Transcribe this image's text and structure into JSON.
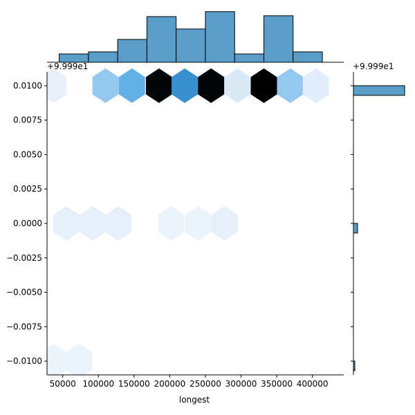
{
  "chart_data": {
    "type": "hexbin-jointplot",
    "xlabel": "longest",
    "ylabel": "",
    "x_offset_label": "",
    "y_offset_label": "+9.999e1",
    "y_offset_label_right": "+9.999e1",
    "xlim": [
      28000,
      444000
    ],
    "ylim": [
      -0.011,
      0.011
    ],
    "x_ticks": [
      50000,
      100000,
      150000,
      200000,
      250000,
      300000,
      350000,
      400000
    ],
    "x_tick_labels": [
      "50000",
      "100000",
      "150000",
      "200000",
      "250000",
      "300000",
      "350000",
      "400000"
    ],
    "y_ticks": [
      0.01,
      0.0075,
      0.005,
      0.0025,
      0.0,
      -0.0025,
      -0.005,
      -0.0075,
      -0.01
    ],
    "y_tick_labels": [
      "0.0100",
      "0.0075",
      "0.0050",
      "0.0025",
      "0.0000",
      "−0.0025",
      "−0.0050",
      "−0.0075",
      "−0.0100"
    ],
    "hexbins": [
      {
        "x": 37000,
        "y": 0.01,
        "count": 1
      },
      {
        "x": 110000,
        "y": 0.01,
        "count": 4
      },
      {
        "x": 147000,
        "y": 0.01,
        "count": 6
      },
      {
        "x": 185000,
        "y": 0.01,
        "count": 12
      },
      {
        "x": 221000,
        "y": 0.01,
        "count": 8
      },
      {
        "x": 258000,
        "y": 0.01,
        "count": 12
      },
      {
        "x": 295000,
        "y": 0.01,
        "count": 2
      },
      {
        "x": 332000,
        "y": 0.01,
        "count": 13
      },
      {
        "x": 369000,
        "y": 0.01,
        "count": 4
      },
      {
        "x": 405000,
        "y": 0.01,
        "count": 1.5
      },
      {
        "x": 55000,
        "y": 0.0,
        "count": 1
      },
      {
        "x": 92000,
        "y": 0.0,
        "count": 1
      },
      {
        "x": 128000,
        "y": 0.0,
        "count": 1
      },
      {
        "x": 202000,
        "y": 0.0,
        "count": 0.5
      },
      {
        "x": 240000,
        "y": 0.0,
        "count": 0.5
      },
      {
        "x": 277000,
        "y": 0.0,
        "count": 1
      },
      {
        "x": 37000,
        "y": -0.01,
        "count": 0.5
      },
      {
        "x": 73000,
        "y": -0.01,
        "count": 0.5
      }
    ],
    "hex_max_count": 13,
    "top_histogram": {
      "bin_edges": [
        45000,
        86000,
        127000,
        168000,
        209000,
        250000,
        291000,
        332000,
        373000,
        414000,
        455000
      ],
      "counts": [
        2,
        2.5,
        5.5,
        11,
        8.02,
        12.2,
        2.0,
        11.2,
        2.5,
        0
      ],
      "ylim": [
        0,
        13
      ]
    },
    "right_histogram": {
      "bins": [
        {
          "y_low": 0.0093,
          "y_high": 0.01,
          "count": 75
        },
        {
          "y_low": -0.0007,
          "y_high": 0.0,
          "count": 6
        },
        {
          "y_low": -0.0107,
          "y_high": -0.01,
          "count": 2
        }
      ],
      "xlim": [
        0,
        80
      ]
    },
    "colors": {
      "hist_fill": "#5b9dc9",
      "hist_edge": "#000000",
      "hex_low": "#eef5fc",
      "hex_mid": "#4ba3e3",
      "hex_dark": "#1f77b4",
      "hex_max": "#000000"
    }
  }
}
